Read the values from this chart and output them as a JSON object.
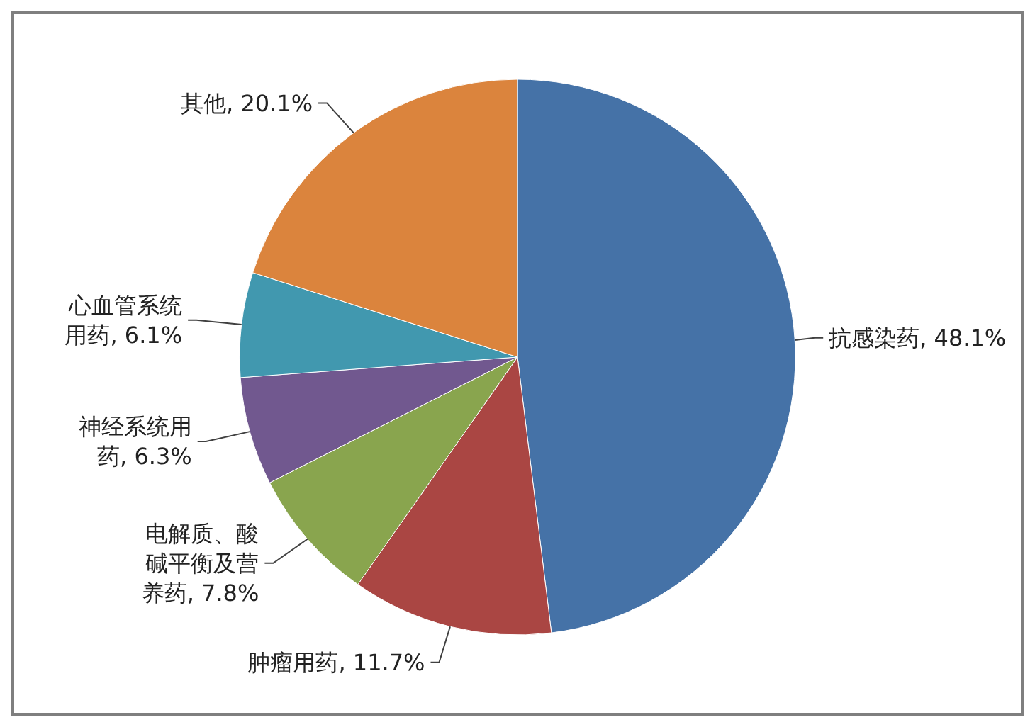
{
  "chart_data": {
    "type": "pie",
    "categories": [
      "抗感染药",
      "肿瘤用药",
      "电解质、酸碱平衡及营养药",
      "神经系统用药",
      "心血管系统用药",
      "其他"
    ],
    "values": [
      48.1,
      11.7,
      7.8,
      6.3,
      6.1,
      20.1
    ],
    "value_labels": [
      "48.1%",
      "11.7%",
      "7.8%",
      "6.3%",
      "6.1%",
      "20.1%"
    ],
    "colors": [
      "#4572a7",
      "#aa4643",
      "#89a54e",
      "#71588f",
      "#4198af",
      "#db843d"
    ],
    "legend": false
  }
}
